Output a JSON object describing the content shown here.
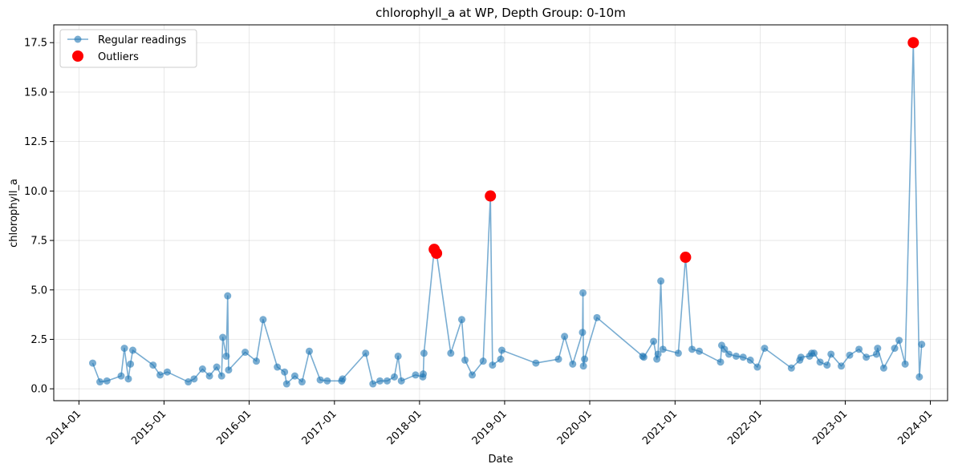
{
  "chart_data": {
    "type": "line",
    "title": "chlorophyll_a at WP, Depth Group: 0-10m",
    "xlabel": "Date",
    "ylabel": "chlorophyll_a",
    "xlim": [
      "2013-09-15",
      "2024-03-15"
    ],
    "ylim": [
      -0.6,
      18.4
    ],
    "grid": true,
    "legend_position": "top-left",
    "x_ticks": [
      "2014-01",
      "2015-01",
      "2016-01",
      "2017-01",
      "2018-01",
      "2019-01",
      "2020-01",
      "2021-01",
      "2022-01",
      "2023-01",
      "2024-01"
    ],
    "y_ticks": [
      0.0,
      2.5,
      5.0,
      7.5,
      10.0,
      12.5,
      15.0,
      17.5
    ],
    "y_tick_labels": [
      "0.0",
      "2.5",
      "5.0",
      "7.5",
      "10.0",
      "12.5",
      "15.0",
      "17.5"
    ],
    "colors": {
      "regular": "#1f77b4",
      "outlier": "#ff0000"
    },
    "series": [
      {
        "name": "Regular readings",
        "style": "line-with-markers",
        "points": [
          [
            "2014-03-01",
            1.3
          ],
          [
            "2014-04-01",
            0.35
          ],
          [
            "2014-05-01",
            0.4
          ],
          [
            "2014-07-01",
            0.65
          ],
          [
            "2014-07-15",
            2.05
          ],
          [
            "2014-08-01",
            0.5
          ],
          [
            "2014-08-10",
            1.25
          ],
          [
            "2014-08-20",
            1.95
          ],
          [
            "2014-11-15",
            1.2
          ],
          [
            "2014-12-15",
            0.7
          ],
          [
            "2015-01-15",
            0.85
          ],
          [
            "2015-04-15",
            0.35
          ],
          [
            "2015-05-10",
            0.5
          ],
          [
            "2015-06-15",
            1.0
          ],
          [
            "2015-07-15",
            0.65
          ],
          [
            "2015-08-15",
            1.1
          ],
          [
            "2015-09-05",
            0.65
          ],
          [
            "2015-09-10",
            2.6
          ],
          [
            "2015-09-25",
            1.65
          ],
          [
            "2015-10-01",
            4.7
          ],
          [
            "2015-10-05",
            0.95
          ],
          [
            "2015-12-15",
            1.85
          ],
          [
            "2016-02-01",
            1.4
          ],
          [
            "2016-03-01",
            3.5
          ],
          [
            "2016-05-01",
            1.1
          ],
          [
            "2016-06-01",
            0.85
          ],
          [
            "2016-06-10",
            0.25
          ],
          [
            "2016-07-15",
            0.65
          ],
          [
            "2016-08-15",
            0.35
          ],
          [
            "2016-09-15",
            1.9
          ],
          [
            "2016-11-01",
            0.45
          ],
          [
            "2016-12-01",
            0.4
          ],
          [
            "2017-02-01",
            0.4
          ],
          [
            "2017-02-05",
            0.5
          ],
          [
            "2017-05-15",
            1.8
          ],
          [
            "2017-06-15",
            0.25
          ],
          [
            "2017-07-15",
            0.4
          ],
          [
            "2017-08-15",
            0.4
          ],
          [
            "2017-09-15",
            0.6
          ],
          [
            "2017-10-01",
            1.65
          ],
          [
            "2017-10-15",
            0.4
          ],
          [
            "2017-12-15",
            0.7
          ],
          [
            "2018-01-15",
            0.6
          ],
          [
            "2018-01-17",
            0.75
          ],
          [
            "2018-01-20",
            1.8
          ],
          [
            "2018-03-05",
            7.05
          ],
          [
            "2018-03-15",
            6.85
          ],
          [
            "2018-05-15",
            1.8
          ],
          [
            "2018-07-01",
            3.5
          ],
          [
            "2018-07-15",
            1.45
          ],
          [
            "2018-08-15",
            0.7
          ],
          [
            "2018-10-01",
            1.4
          ],
          [
            "2018-11-01",
            9.75
          ],
          [
            "2018-11-10",
            1.2
          ],
          [
            "2018-12-15",
            1.5
          ],
          [
            "2018-12-20",
            1.95
          ],
          [
            "2019-05-15",
            1.3
          ],
          [
            "2019-08-20",
            1.5
          ],
          [
            "2019-09-15",
            2.65
          ],
          [
            "2019-10-20",
            1.25
          ],
          [
            "2019-12-01",
            2.85
          ],
          [
            "2019-12-03",
            4.85
          ],
          [
            "2019-12-05",
            1.15
          ],
          [
            "2019-12-10",
            1.5
          ],
          [
            "2020-02-01",
            3.6
          ],
          [
            "2020-08-15",
            1.65
          ],
          [
            "2020-08-20",
            1.6
          ],
          [
            "2020-10-01",
            2.4
          ],
          [
            "2020-10-15",
            1.5
          ],
          [
            "2020-10-20",
            1.75
          ],
          [
            "2020-11-01",
            5.45
          ],
          [
            "2020-11-10",
            2.0
          ],
          [
            "2021-01-15",
            1.8
          ],
          [
            "2021-02-15",
            6.65
          ],
          [
            "2021-03-15",
            2.0
          ],
          [
            "2021-04-15",
            1.9
          ],
          [
            "2021-07-15",
            1.35
          ],
          [
            "2021-07-20",
            2.2
          ],
          [
            "2021-08-01",
            2.0
          ],
          [
            "2021-08-20",
            1.75
          ],
          [
            "2021-09-20",
            1.65
          ],
          [
            "2021-10-20",
            1.6
          ],
          [
            "2021-11-20",
            1.45
          ],
          [
            "2021-12-20",
            1.1
          ],
          [
            "2022-01-20",
            2.05
          ],
          [
            "2022-05-15",
            1.05
          ],
          [
            "2022-06-20",
            1.45
          ],
          [
            "2022-06-25",
            1.6
          ],
          [
            "2022-08-01",
            1.65
          ],
          [
            "2022-08-10",
            1.8
          ],
          [
            "2022-08-20",
            1.8
          ],
          [
            "2022-09-15",
            1.35
          ],
          [
            "2022-10-15",
            1.2
          ],
          [
            "2022-11-01",
            1.75
          ],
          [
            "2022-12-15",
            1.15
          ],
          [
            "2023-01-20",
            1.7
          ],
          [
            "2023-03-01",
            2.0
          ],
          [
            "2023-04-01",
            1.6
          ],
          [
            "2023-05-15",
            1.75
          ],
          [
            "2023-05-20",
            2.05
          ],
          [
            "2023-06-15",
            1.05
          ],
          [
            "2023-08-01",
            2.05
          ],
          [
            "2023-08-20",
            2.45
          ],
          [
            "2023-09-15",
            1.25
          ],
          [
            "2023-10-20",
            17.5
          ],
          [
            "2023-11-15",
            0.6
          ],
          [
            "2023-11-25",
            2.25
          ]
        ]
      },
      {
        "name": "Outliers",
        "style": "markers",
        "points": [
          [
            "2018-03-05",
            7.05
          ],
          [
            "2018-03-15",
            6.85
          ],
          [
            "2018-11-01",
            9.75
          ],
          [
            "2021-02-15",
            6.65
          ],
          [
            "2023-10-20",
            17.5
          ]
        ]
      }
    ]
  }
}
